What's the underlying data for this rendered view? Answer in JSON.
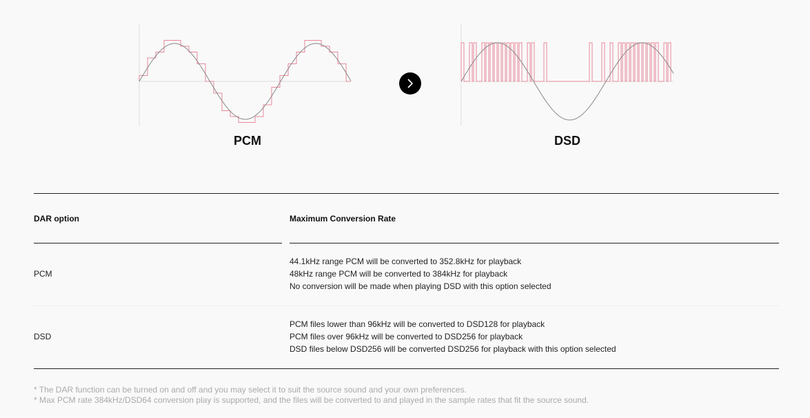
{
  "figures": {
    "pcm_label": "PCM",
    "dsd_label": "DSD",
    "arrow_icon": "chevron-right-icon",
    "colors": {
      "wave": "#888888",
      "signal": "#e8899b",
      "axis": "#cccccc"
    }
  },
  "table": {
    "headers": [
      "DAR option",
      "Maximum Conversion Rate"
    ],
    "rows": [
      {
        "option": "PCM",
        "lines": [
          "44.1kHz range PCM will be converted to 352.8kHz for playback",
          "48kHz range PCM will be converted to 384kHz for playback",
          "No conversion will be made when playing DSD with this option selected"
        ]
      },
      {
        "option": "DSD",
        "lines": [
          "PCM files lower than 96kHz will be converted to DSD128 for playback",
          "PCM files over 96kHz will be converted to DSD256 for playback",
          "DSD files below DSD256 will be converted DSD256 for playback with this option selected"
        ]
      }
    ]
  },
  "notes": [
    "* The DAR function can be turned on and off and you may select it to suit the source sound and your own preferences.",
    "* Max PCM rate 384kHz/DSD64 conversion play is supported, and the files will be converted to and played in the sample rates that fit the source sound."
  ]
}
